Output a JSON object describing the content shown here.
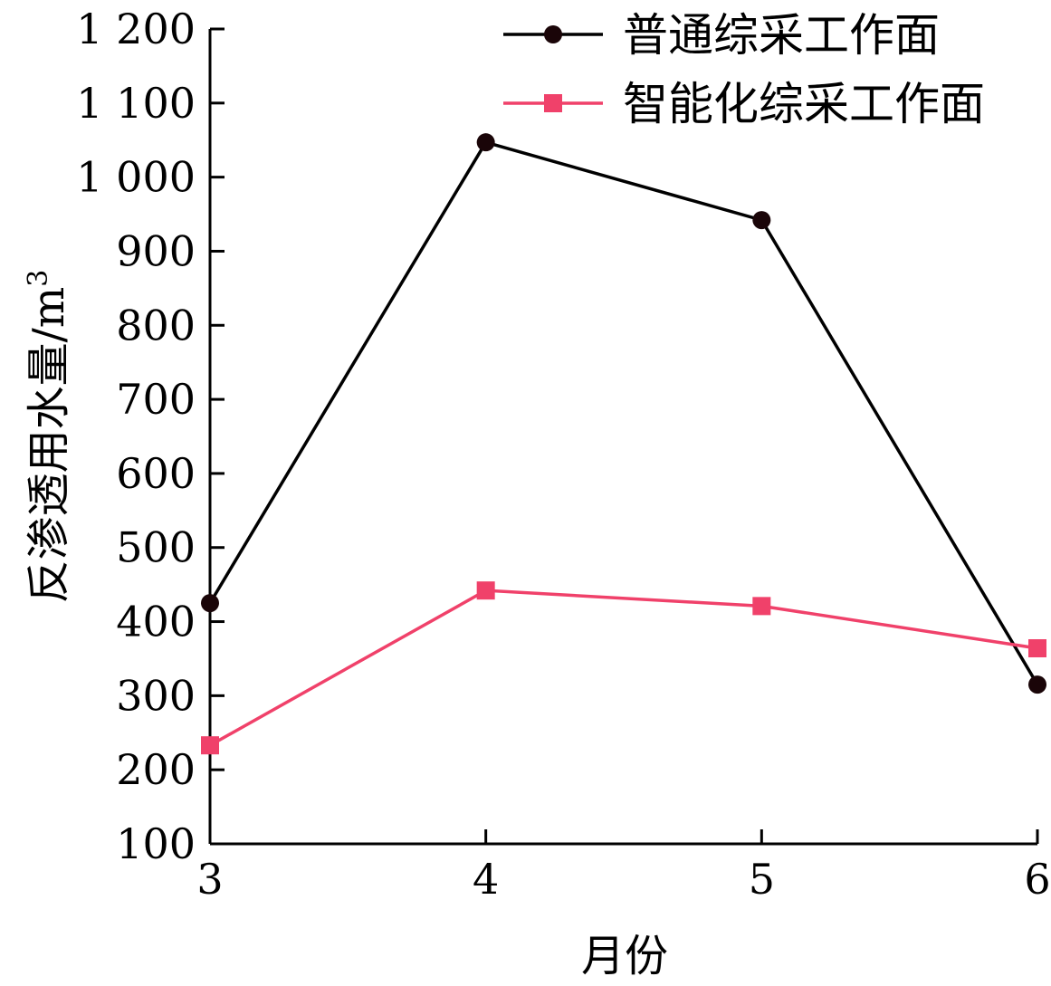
{
  "chart_data": {
    "type": "line",
    "title": "",
    "xlabel": "月份",
    "ylabel": "反渗透用水量/m³",
    "ylabel_parts": {
      "main": "反渗透用水量/m",
      "superscript": "3"
    },
    "x": [
      3,
      4,
      5,
      6
    ],
    "x_tick_labels": [
      "3",
      "4",
      "5",
      "6"
    ],
    "xlim": [
      3,
      6
    ],
    "ylim": [
      100,
      1200
    ],
    "y_ticks": [
      100,
      200,
      300,
      400,
      500,
      600,
      700,
      800,
      900,
      1000,
      1100,
      1200
    ],
    "y_tick_labels": [
      "100",
      "200",
      "300",
      "400",
      "500",
      "600",
      "700",
      "800",
      "900",
      "1 000",
      "1 100",
      "1 200"
    ],
    "grid": false,
    "legend_position": "top-right",
    "series": [
      {
        "name": "普通综采工作面",
        "values": [
          425,
          1047,
          942,
          315
        ],
        "color": "#000000",
        "marker_color": "#1a0508",
        "marker": "circle"
      },
      {
        "name": "智能化综采工作面",
        "values": [
          233,
          442,
          421,
          364
        ],
        "color": "#f0416a",
        "marker_color": "#f0416a",
        "marker": "square"
      }
    ]
  }
}
